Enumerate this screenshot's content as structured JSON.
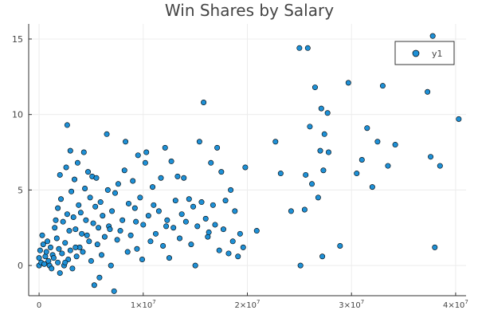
{
  "chart_data": {
    "type": "scatter",
    "title": "Win Shares by Salary",
    "xlabel": "",
    "ylabel": "",
    "xlim": [
      -1000000,
      41000000
    ],
    "ylim": [
      -2,
      16
    ],
    "x_ticks": [
      {
        "value": 0,
        "label": "0"
      },
      {
        "value": 10000000,
        "label": "1×10",
        "sup": "7"
      },
      {
        "value": 20000000,
        "label": "2×10",
        "sup": "7"
      },
      {
        "value": 30000000,
        "label": "3×10",
        "sup": "7"
      },
      {
        "value": 40000000,
        "label": "4×10",
        "sup": "7"
      }
    ],
    "y_ticks": [
      {
        "value": 0,
        "label": "0"
      },
      {
        "value": 5,
        "label": "5"
      },
      {
        "value": 10,
        "label": "10"
      },
      {
        "value": 15,
        "label": "15"
      }
    ],
    "grid": true,
    "legend": {
      "position": "top-right",
      "entries": [
        "y1"
      ]
    },
    "colors": {
      "marker": "#1e90d6",
      "marker_stroke": "#000000",
      "grid": "#ececec",
      "axis": "#333333",
      "text": "#444444"
    },
    "series": [
      {
        "name": "y1",
        "points": [
          [
            0,
            0.0
          ],
          [
            0,
            0.5
          ],
          [
            100000,
            1.0
          ],
          [
            200000,
            0.2
          ],
          [
            300000,
            2.0
          ],
          [
            400000,
            1.4
          ],
          [
            500000,
            0.1
          ],
          [
            600000,
            0.6
          ],
          [
            700000,
            0.9
          ],
          [
            800000,
            1.6
          ],
          [
            900000,
            0.3
          ],
          [
            1000000,
            0.0
          ],
          [
            1100000,
            1.2
          ],
          [
            1200000,
            -0.2
          ],
          [
            1300000,
            0.7
          ],
          [
            1400000,
            0.5
          ],
          [
            1500000,
            2.5
          ],
          [
            1600000,
            3.0
          ],
          [
            1700000,
            1.8
          ],
          [
            1800000,
            0.2
          ],
          [
            1800000,
            3.8
          ],
          [
            1900000,
            1.1
          ],
          [
            2000000,
            -0.5
          ],
          [
            2000000,
            6.0
          ],
          [
            2100000,
            4.4
          ],
          [
            2200000,
            0.8
          ],
          [
            2300000,
            2.9
          ],
          [
            2400000,
            0.0
          ],
          [
            2500000,
            1.5
          ],
          [
            2600000,
            6.5
          ],
          [
            2700000,
            9.3
          ],
          [
            2700000,
            3.4
          ],
          [
            2800000,
            0.4
          ],
          [
            2900000,
            2.3
          ],
          [
            3000000,
            7.6
          ],
          [
            3000000,
            1.0
          ],
          [
            3100000,
            4.9
          ],
          [
            3200000,
            -0.2
          ],
          [
            3300000,
            3.2
          ],
          [
            3400000,
            5.7
          ],
          [
            3500000,
            2.4
          ],
          [
            3600000,
            0.6
          ],
          [
            3700000,
            6.8
          ],
          [
            3800000,
            4.0
          ],
          [
            3900000,
            1.2
          ],
          [
            4000000,
            3.5
          ],
          [
            4100000,
            2.1
          ],
          [
            4200000,
            0.9
          ],
          [
            4300000,
            7.5
          ],
          [
            4400000,
            5.1
          ],
          [
            4500000,
            3.0
          ],
          [
            4600000,
            2.0
          ],
          [
            4700000,
            6.2
          ],
          [
            4800000,
            1.6
          ],
          [
            4900000,
            4.5
          ],
          [
            5000000,
            0.3
          ],
          [
            5100000,
            5.9
          ],
          [
            5200000,
            2.8
          ],
          [
            5300000,
            -1.3
          ],
          [
            5400000,
            3.9
          ],
          [
            5500000,
            5.8
          ],
          [
            5600000,
            1.4
          ],
          [
            5700000,
            2.5
          ],
          [
            5800000,
            -0.8
          ],
          [
            5900000,
            4.2
          ],
          [
            6000000,
            0.7
          ],
          [
            6100000,
            3.3
          ],
          [
            6300000,
            1.9
          ],
          [
            6500000,
            8.7
          ],
          [
            6600000,
            5.0
          ],
          [
            6700000,
            2.6
          ],
          [
            6900000,
            0.0
          ],
          [
            7000000,
            3.6
          ],
          [
            7200000,
            -1.7
          ],
          [
            7300000,
            4.8
          ],
          [
            7500000,
            1.7
          ],
          [
            7600000,
            5.4
          ],
          [
            7800000,
            2.3
          ],
          [
            8000000,
            3.0
          ],
          [
            8200000,
            6.3
          ],
          [
            8300000,
            8.2
          ],
          [
            8500000,
            0.9
          ],
          [
            8600000,
            4.1
          ],
          [
            8800000,
            2.0
          ],
          [
            9000000,
            5.6
          ],
          [
            9200000,
            3.8
          ],
          [
            9400000,
            1.1
          ],
          [
            9500000,
            7.3
          ],
          [
            9700000,
            4.5
          ],
          [
            9900000,
            0.4
          ],
          [
            10000000,
            2.7
          ],
          [
            10200000,
            6.8
          ],
          [
            10300000,
            7.5
          ],
          [
            10500000,
            3.3
          ],
          [
            10700000,
            1.6
          ],
          [
            10900000,
            5.2
          ],
          [
            11000000,
            4.0
          ],
          [
            11200000,
            2.1
          ],
          [
            11500000,
            3.6
          ],
          [
            11700000,
            5.8
          ],
          [
            11900000,
            1.3
          ],
          [
            12100000,
            7.8
          ],
          [
            12300000,
            3.0
          ],
          [
            12500000,
            0.5
          ],
          [
            12700000,
            6.9
          ],
          [
            12900000,
            2.5
          ],
          [
            13100000,
            4.3
          ],
          [
            13300000,
            5.9
          ],
          [
            13500000,
            1.8
          ],
          [
            13700000,
            3.4
          ],
          [
            13900000,
            5.8
          ],
          [
            14100000,
            2.9
          ],
          [
            14400000,
            4.4
          ],
          [
            14600000,
            1.4
          ],
          [
            14800000,
            3.9
          ],
          [
            15000000,
            0.0
          ],
          [
            15200000,
            2.6
          ],
          [
            15400000,
            8.2
          ],
          [
            15600000,
            4.2
          ],
          [
            15800000,
            10.8
          ],
          [
            16000000,
            3.1
          ],
          [
            16200000,
            1.9
          ],
          [
            16500000,
            6.8
          ],
          [
            16700000,
            4.0
          ],
          [
            16900000,
            2.7
          ],
          [
            17100000,
            7.8
          ],
          [
            17300000,
            1.0
          ],
          [
            17500000,
            6.2
          ],
          [
            17700000,
            2.4
          ],
          [
            17900000,
            4.3
          ],
          [
            18200000,
            0.8
          ],
          [
            18400000,
            5.0
          ],
          [
            18600000,
            1.6
          ],
          [
            18800000,
            3.6
          ],
          [
            19100000,
            0.6
          ],
          [
            19300000,
            2.1
          ],
          [
            19600000,
            1.2
          ],
          [
            19800000,
            6.5
          ],
          [
            20900000,
            2.3
          ],
          [
            22700000,
            8.2
          ],
          [
            23200000,
            6.1
          ],
          [
            24200000,
            3.6
          ],
          [
            25000000,
            14.4
          ],
          [
            25100000,
            0.0
          ],
          [
            25500000,
            3.7
          ],
          [
            25600000,
            6.0
          ],
          [
            25800000,
            14.4
          ],
          [
            26000000,
            9.2
          ],
          [
            26200000,
            5.4
          ],
          [
            26500000,
            11.8
          ],
          [
            26800000,
            4.5
          ],
          [
            27000000,
            7.6
          ],
          [
            27100000,
            10.4
          ],
          [
            27200000,
            0.6
          ],
          [
            27300000,
            6.3
          ],
          [
            27400000,
            8.7
          ],
          [
            27700000,
            10.1
          ],
          [
            27800000,
            7.5
          ],
          [
            28900000,
            1.3
          ],
          [
            29700000,
            12.1
          ],
          [
            30500000,
            6.1
          ],
          [
            31000000,
            7.0
          ],
          [
            31500000,
            9.1
          ],
          [
            32000000,
            5.2
          ],
          [
            32500000,
            8.2
          ],
          [
            33000000,
            11.9
          ],
          [
            33500000,
            6.6
          ],
          [
            34200000,
            8.0
          ],
          [
            37300000,
            11.5
          ],
          [
            37600000,
            7.2
          ],
          [
            37800000,
            15.2
          ],
          [
            38000000,
            1.2
          ],
          [
            38500000,
            6.6
          ],
          [
            40300000,
            9.7
          ],
          [
            2500000,
            0.2
          ],
          [
            3500000,
            1.2
          ],
          [
            6800000,
            2.4
          ],
          [
            9300000,
            2.9
          ],
          [
            12200000,
            2.6
          ],
          [
            16300000,
            2.2
          ]
        ]
      }
    ]
  }
}
